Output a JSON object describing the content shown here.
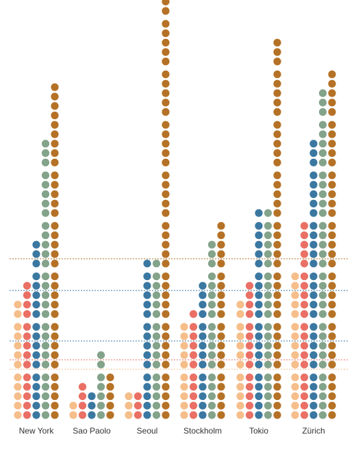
{
  "chart_data": {
    "type": "dot-column",
    "colors": {
      "peach": "#f5be8a",
      "coral": "#ea7065",
      "blue": "#3b78a1",
      "sage": "#83a38a",
      "brown": "#b57226"
    },
    "series_order": [
      "peach",
      "coral",
      "blue",
      "sage",
      "brown"
    ],
    "reference_lines": [
      {
        "value": 16,
        "color": "brown"
      },
      {
        "value": 13,
        "color": "blue"
      },
      {
        "value": 8,
        "color": "blue"
      },
      {
        "value": 6,
        "color": "coral"
      },
      {
        "value": 5,
        "color": "peach"
      }
    ],
    "cities": [
      {
        "label": "New York",
        "values": {
          "peach": 12,
          "coral": 14,
          "blue": 18,
          "sage": 28,
          "brown": 34
        }
      },
      {
        "label": "Sao Paolo",
        "values": {
          "peach": 2,
          "coral": 4,
          "blue": 3,
          "sage": 7,
          "brown": 5
        }
      },
      {
        "label": "Seoul",
        "values": {
          "peach": 3,
          "coral": 3,
          "blue": 16,
          "sage": 16,
          "brown": 43
        }
      },
      {
        "label": "Stockholm",
        "values": {
          "peach": 10,
          "coral": 11,
          "blue": 14,
          "sage": 18,
          "brown": 20
        }
      },
      {
        "label": "Tokio",
        "values": {
          "peach": 12,
          "coral": 14,
          "blue": 21,
          "sage": 21,
          "brown": 38
        }
      },
      {
        "label": "Zürich",
        "values": {
          "peach": 15,
          "coral": 20,
          "blue": 28,
          "sage": 33,
          "brown": 35
        }
      }
    ],
    "gaps_after": {
      "New York": [
        5,
        10,
        15,
        20,
        25
      ],
      "Sao Paolo": [
        5
      ],
      "Seoul": [
        5,
        10,
        15,
        20,
        25,
        30,
        35,
        40
      ],
      "Stockholm": [
        5,
        10,
        15
      ],
      "Tokio": [
        5,
        10,
        15,
        20,
        25,
        30,
        35
      ],
      "Zürich": [
        5,
        10,
        15,
        20,
        25,
        30
      ]
    }
  }
}
